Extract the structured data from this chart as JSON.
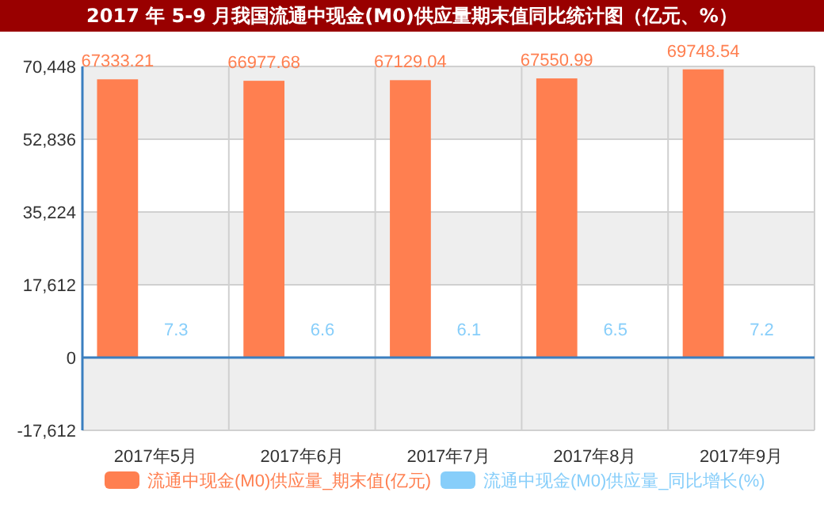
{
  "chart_data": {
    "type": "bar",
    "title": "2017 年 5-9 月我国流通中现金(M0)供应量期末值同比统计图（亿元、%）",
    "categories": [
      "2017年5月",
      "2017年6月",
      "2017年7月",
      "2017年8月",
      "2017年9月"
    ],
    "series": [
      {
        "name": "流通中现金(M0)供应量_期末值(亿元)",
        "color": "#ff7f50",
        "values": [
          67333.21,
          66977.68,
          67129.04,
          67550.99,
          69748.54
        ]
      },
      {
        "name": "流通中现金(M0)供应量_同比增长(%)",
        "color": "#87cefa",
        "values": [
          7.3,
          6.6,
          6.1,
          6.5,
          7.2
        ]
      }
    ],
    "ylim": [
      -17612,
      70448
    ],
    "yticks": [
      {
        "value": -17612,
        "label": "-17,612"
      },
      0,
      {
        "value": 17612,
        "label": "17,612"
      },
      {
        "value": 35224,
        "label": "35,224"
      },
      {
        "value": 52836,
        "label": "52,836"
      },
      {
        "value": 70448,
        "label": "70,448"
      }
    ],
    "ref_lines": [
      {
        "axis": "y",
        "value": 0,
        "color": "#3a7fc0"
      }
    ],
    "grid": true,
    "legend": "bottom",
    "data_labels": true
  }
}
